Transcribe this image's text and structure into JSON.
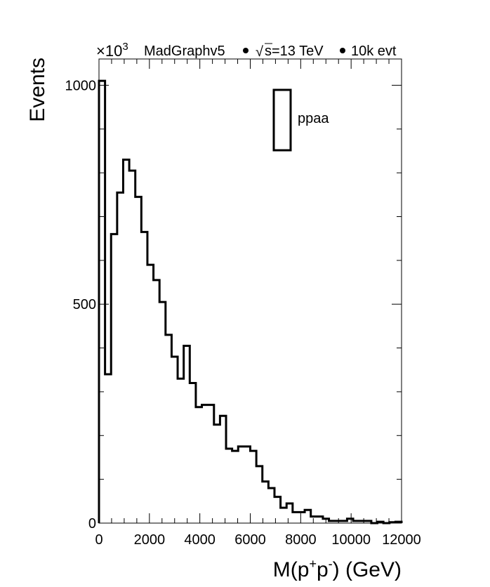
{
  "header": {
    "multiplier_base": "×10",
    "multiplier_exp": "3",
    "generator": "MadGraphv5",
    "sqrt_s": "s=13 TeV",
    "events": "10k evt"
  },
  "chart_data": {
    "type": "histogram",
    "xlabel_main": "M(p",
    "xlabel_sup1": "+",
    "xlabel_mid": "p",
    "xlabel_sup2": "-",
    "xlabel_end": ") (GeV)",
    "ylabel": "Events",
    "xlim": [
      0,
      12000
    ],
    "ylim": [
      0,
      1060
    ],
    "x_ticks": [
      0,
      2000,
      4000,
      6000,
      8000,
      10000,
      12000
    ],
    "x_tick_labels": [
      "0",
      "2000",
      "4000",
      "6000",
      "8000",
      "10000",
      "12000"
    ],
    "y_ticks": [
      0,
      500,
      1000
    ],
    "y_tick_labels": [
      "0",
      "500",
      "1000"
    ],
    "bin_width": 240,
    "legend": {
      "label": "ppaa",
      "position": "top-right"
    },
    "series": [
      {
        "name": "ppaa",
        "bin_edges_start": 0,
        "values": [
          1010,
          340,
          660,
          755,
          830,
          805,
          745,
          665,
          590,
          555,
          505,
          430,
          380,
          330,
          405,
          320,
          265,
          270,
          270,
          225,
          245,
          170,
          165,
          175,
          175,
          165,
          130,
          95,
          80,
          60,
          35,
          45,
          25,
          25,
          30,
          15,
          15,
          10,
          5,
          5,
          5,
          10,
          5,
          5,
          5,
          0,
          3,
          0,
          2,
          3
        ]
      }
    ]
  }
}
